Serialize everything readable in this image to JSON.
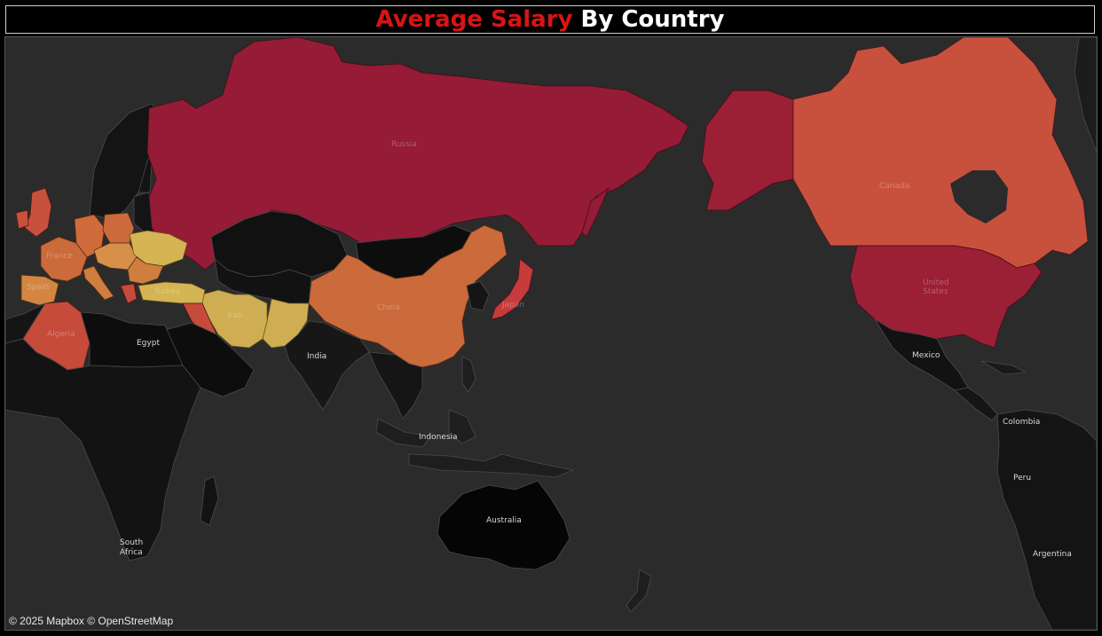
{
  "title": {
    "part1": "Average Salary",
    "part2": "By Country"
  },
  "colors": {
    "title_accent": "#d91414",
    "ocean": "#2b2b2b",
    "land_no_data": "#141414",
    "border": "#4a4a4a",
    "scale_high": "#951b36",
    "scale_mid": "#c85a3c",
    "scale_low": "#d4b453"
  },
  "countries_with_data": [
    {
      "name": "Russia",
      "color": "#951b36"
    },
    {
      "name": "United States",
      "color": "#9b1f35"
    },
    {
      "name": "Canada",
      "color": "#c8513e"
    },
    {
      "name": "China",
      "color": "#cb6a3a"
    },
    {
      "name": "Algeria",
      "color": "#c64b3b"
    },
    {
      "name": "Turkey",
      "color": "#d4b453"
    },
    {
      "name": "Iran",
      "color": "#cfae53"
    },
    {
      "name": "Japan",
      "color": "#c63b3c"
    }
  ],
  "labels": {
    "russia": "Russia",
    "canada": "Canada",
    "united_states_1": "United",
    "united_states_2": "States",
    "china": "China",
    "iran": "Iran",
    "turkey": "Turkey",
    "algeria": "Algeria",
    "france": "France",
    "spain": "Spain",
    "egypt": "Egypt",
    "india": "India",
    "indonesia": "Indonesia",
    "australia": "Australia",
    "mexico": "Mexico",
    "colombia": "Colombia",
    "peru": "Peru",
    "argentina": "Argentina",
    "south_africa_1": "South",
    "south_africa_2": "Africa",
    "japan": "Japan"
  },
  "attribution": "© 2025 Mapbox © OpenStreetMap"
}
